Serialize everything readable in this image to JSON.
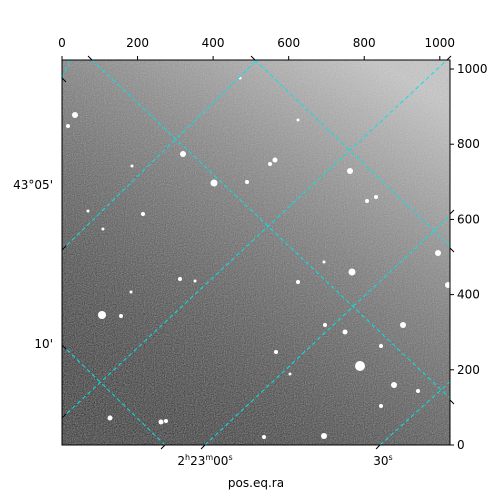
{
  "chart_data": {
    "type": "image",
    "x_label": "pos.eq.ra",
    "xlim": [
      0,
      1027
    ],
    "xticks": [
      0,
      200,
      400,
      600,
      800,
      1000
    ],
    "ylim": [
      0,
      1024
    ],
    "yticks": [
      0,
      200,
      400,
      600,
      800,
      1000
    ],
    "world_x_tick_labels": [
      "2h23m00s",
      "30s"
    ],
    "world_y_tick_labels": [
      "43°05'",
      "10'"
    ],
    "grid_color": "#00e5e5"
  }
}
